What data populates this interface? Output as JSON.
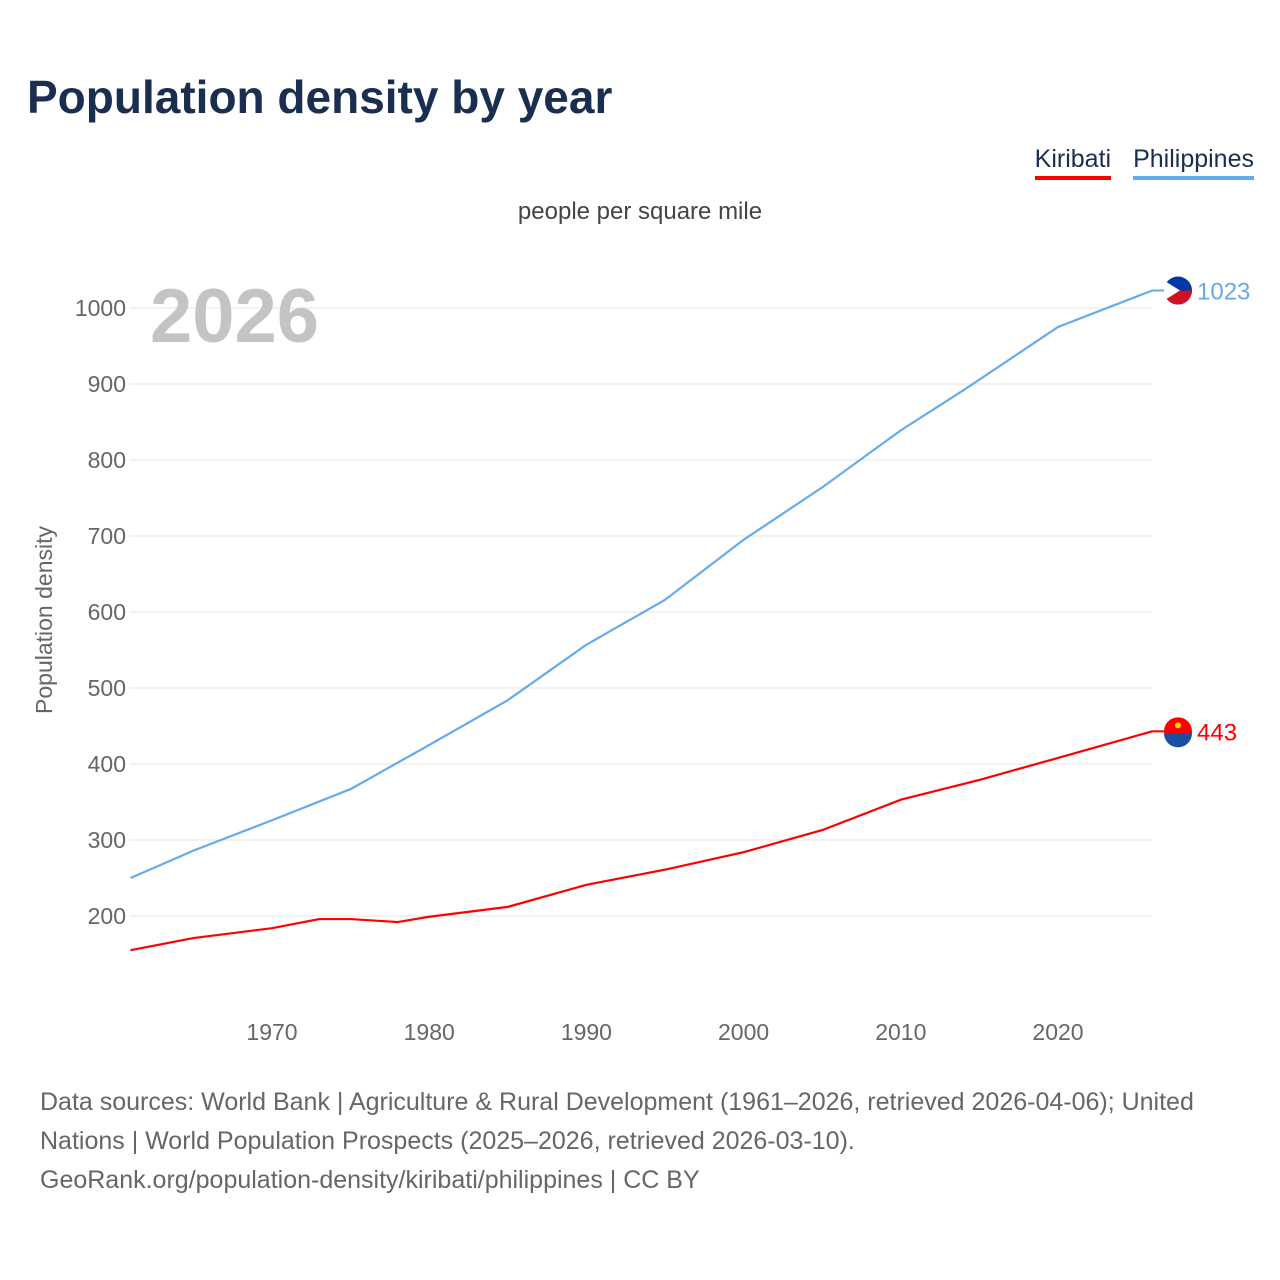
{
  "chart_data": {
    "type": "line",
    "title": "Population density by year",
    "subtitle": "people per square mile",
    "ylabel": "Population density",
    "xlabel": "",
    "year_label": "2026",
    "ylim": [
      100,
      1050
    ],
    "xlim": [
      1961,
      2026
    ],
    "yticks": [
      200,
      300,
      400,
      500,
      600,
      700,
      800,
      900,
      1000
    ],
    "xticks": [
      1970,
      1980,
      1990,
      2000,
      2010,
      2020
    ],
    "grid": true,
    "legend_position": "top-right",
    "series": [
      {
        "name": "Kiribati",
        "color": "#ff0000",
        "end_label": "443",
        "x": [
          1961,
          1965,
          1970,
          1973,
          1975,
          1978,
          1980,
          1985,
          1990,
          1995,
          2000,
          2005,
          2010,
          2015,
          2020,
          2026
        ],
        "values": [
          155,
          171,
          184,
          196,
          196,
          192,
          199,
          212,
          241,
          261,
          284,
          313,
          353,
          379,
          408,
          443
        ]
      },
      {
        "name": "Philippines",
        "color": "#66aaee",
        "end_label": "1023",
        "x": [
          1961,
          1965,
          1970,
          1975,
          1980,
          1985,
          1990,
          1995,
          2000,
          2005,
          2010,
          2014,
          2020,
          2026
        ],
        "values": [
          250,
          286,
          326,
          367,
          425,
          484,
          557,
          616,
          695,
          764,
          839,
          892,
          975,
          1023
        ]
      }
    ]
  },
  "footer": {
    "line1": "Data sources: World Bank | Agriculture & Rural Development (1961–2026, retrieved 2026-04-06); United Nations | World Population Prospects (2025–2026, retrieved 2026-03-10).",
    "line2": "GeoRank.org/population-density/kiribati/philippines | CC BY"
  }
}
